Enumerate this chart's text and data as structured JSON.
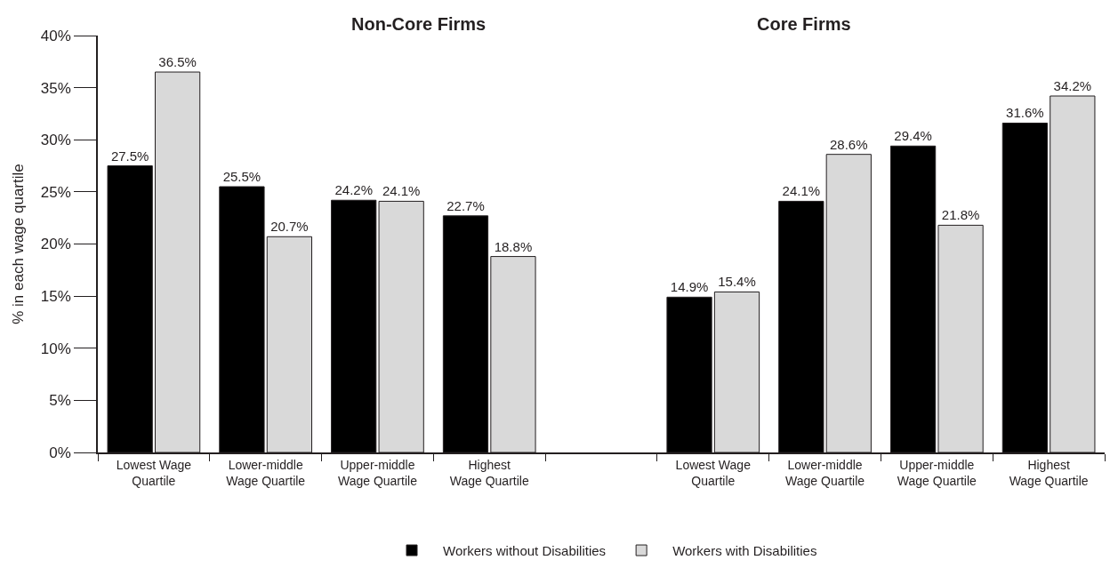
{
  "chart_data": {
    "type": "bar",
    "ylabel": "% in each wage quartile",
    "annotations": [
      "Non-Core Firms",
      "Core Firms"
    ],
    "categories": [
      "Lowest Wage\nQuartile",
      "Lower-middle\nWage Quartile",
      "Upper-middle\nWage Quartile",
      "Highest\nWage Quartile",
      null,
      "Lowest Wage\nQuartile",
      "Lower-middle\nWage Quartile",
      "Upper-middle\nWage Quartile",
      "Highest\nWage Quartile"
    ],
    "series": [
      {
        "name": "Workers without Disabilities",
        "color": "#000000",
        "values": [
          27.5,
          25.5,
          24.2,
          22.7,
          null,
          14.9,
          24.1,
          29.4,
          31.6
        ],
        "value_labels": [
          "27.5%",
          "25.5%",
          "24.2%",
          "22.7%",
          null,
          "14.9%",
          "24.1%",
          "29.4%",
          "31.6%"
        ]
      },
      {
        "name": "Workers with Disabilities",
        "color": "#d9d9d9",
        "values": [
          36.5,
          20.7,
          24.1,
          18.8,
          null,
          15.4,
          28.6,
          21.8,
          34.2
        ],
        "value_labels": [
          "36.5%",
          "20.7%",
          "24.1%",
          "18.8%",
          null,
          "15.4%",
          "28.6%",
          "21.8%",
          "34.2%"
        ]
      }
    ],
    "ylim": [
      0,
      40
    ],
    "yticks": [
      {
        "value": 0,
        "label": "0%"
      },
      {
        "value": 5,
        "label": "5%"
      },
      {
        "value": 10,
        "label": "10%"
      },
      {
        "value": 15,
        "label": "15%"
      },
      {
        "value": 20,
        "label": "20%"
      },
      {
        "value": 25,
        "label": "25%"
      },
      {
        "value": 30,
        "label": "30%"
      },
      {
        "value": 35,
        "label": "35%"
      },
      {
        "value": 40,
        "label": "40%"
      }
    ],
    "legend": "bottom"
  }
}
